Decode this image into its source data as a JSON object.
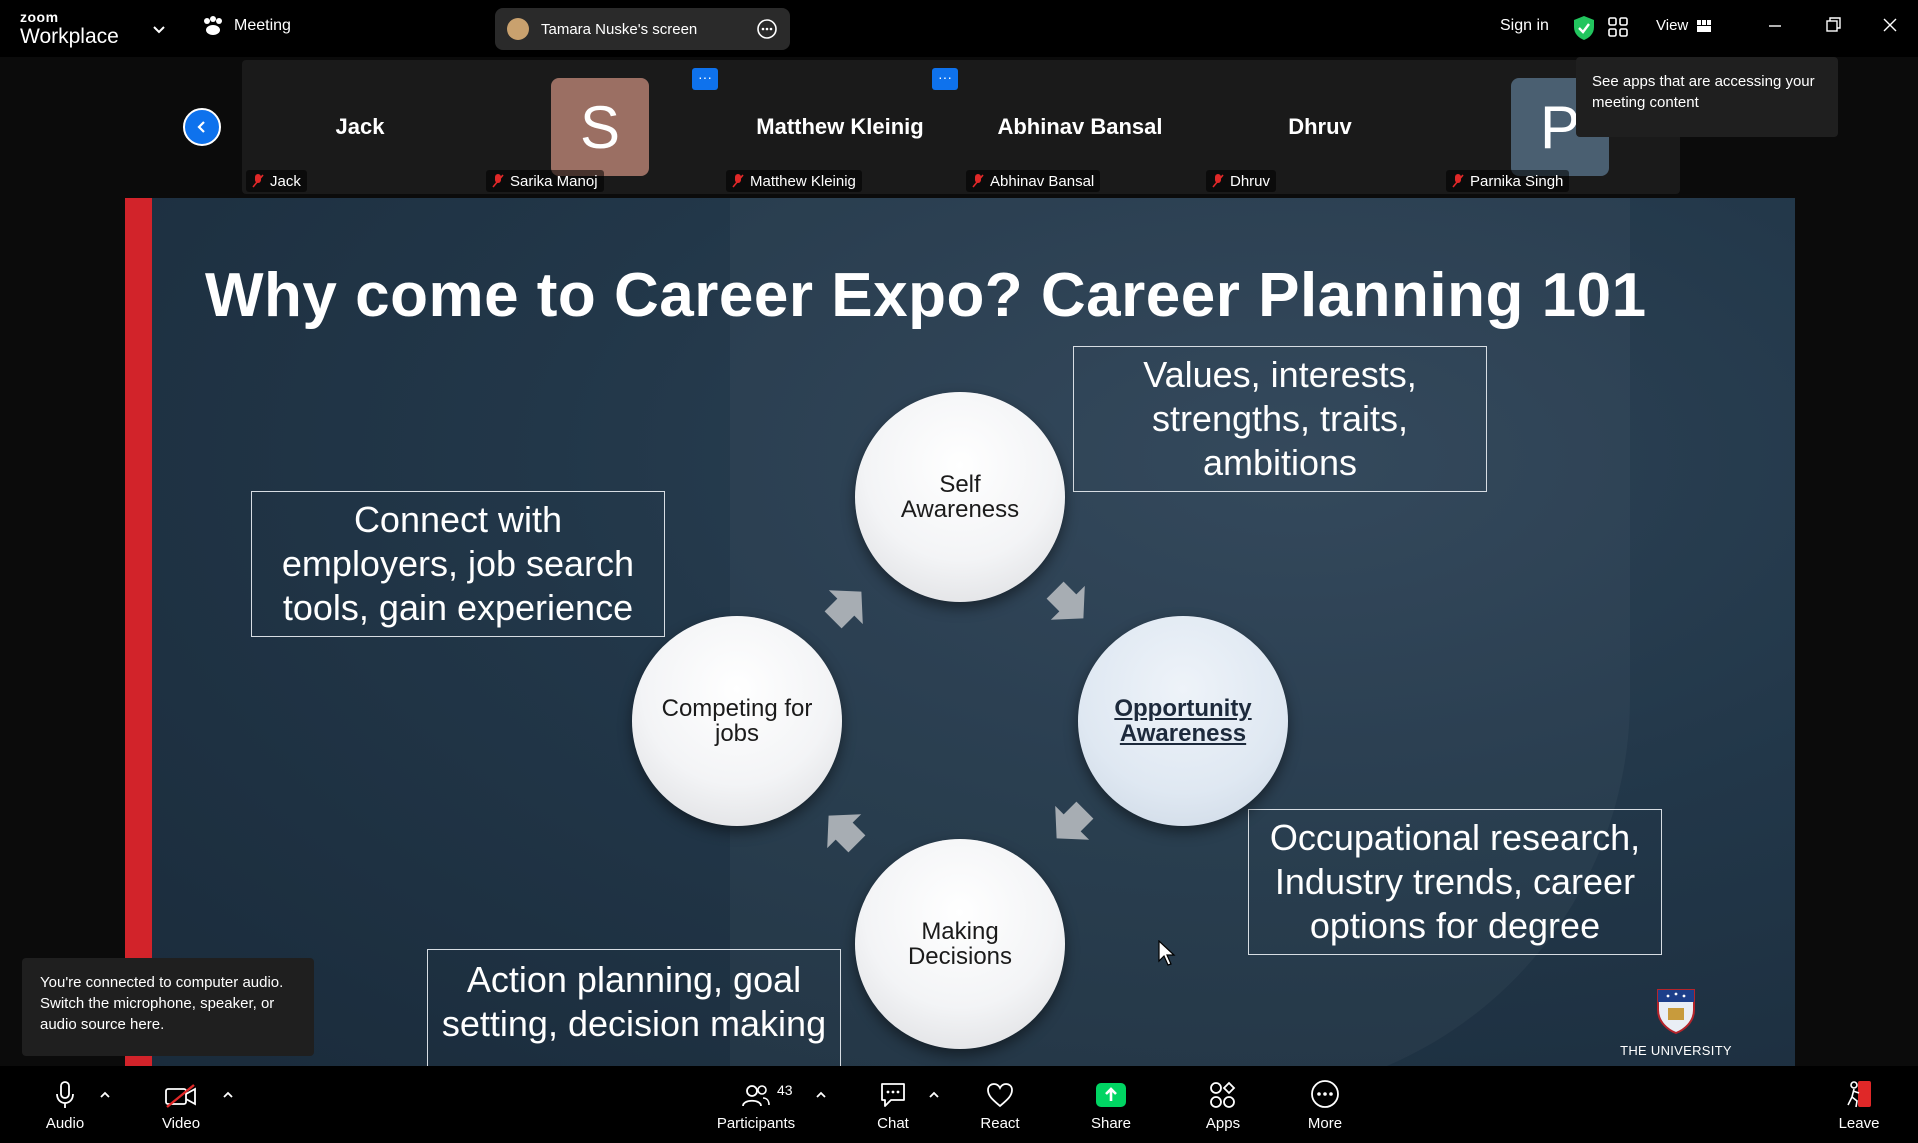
{
  "topbar": {
    "brand_small": "zoom",
    "brand_large": "Workplace",
    "meeting_label": "Meeting",
    "share_title": "Tamara Nuske's screen",
    "sign_in": "Sign in",
    "view_label": "View"
  },
  "participants": [
    {
      "big_name": "Jack",
      "label": "Jack"
    },
    {
      "big_name": "",
      "avatar_letter": "S",
      "avatar_color": "#9b6f63",
      "label": "Sarika Manoj"
    },
    {
      "big_name": "Matthew Kleinig",
      "label": "Matthew Kleinig"
    },
    {
      "big_name": "Abhinav Bansal",
      "label": "Abhinav Bansal"
    },
    {
      "big_name": "Dhruv",
      "label": "Dhruv"
    },
    {
      "big_name": "",
      "avatar_letter": "P",
      "avatar_color": "#4a5f71",
      "label": "Parnika Singh"
    }
  ],
  "apps_tooltip": "See apps that are accessing your meeting content",
  "slide": {
    "title": "Why come to Career Expo? Career Planning 101",
    "circles": {
      "self": "Self Awareness",
      "opportunity": "Opportunity Awareness",
      "decisions": "Making Decisions",
      "competing": "Competing for jobs"
    },
    "boxes": {
      "values": "Values, interests, strengths, traits, ambitions",
      "connect": "Connect with employers, job search tools, gain experience",
      "occupational": "Occupational research, Industry trends, career options for degree",
      "action": "Action planning, goal setting, decision making"
    },
    "university": "THE UNIVERSITY"
  },
  "audio_toast": "You're connected to computer audio. Switch the microphone, speaker, or audio source here.",
  "toolbar": {
    "audio": "Audio",
    "video": "Video",
    "participants": "Participants",
    "participants_count": "43",
    "chat": "Chat",
    "react": "React",
    "share": "Share",
    "apps": "Apps",
    "more": "More",
    "leave": "Leave"
  },
  "colors": {
    "accent_blue": "#0e72ed",
    "share_green": "#00d563",
    "slide_red": "#d2232a",
    "mute_red": "#e02828"
  }
}
